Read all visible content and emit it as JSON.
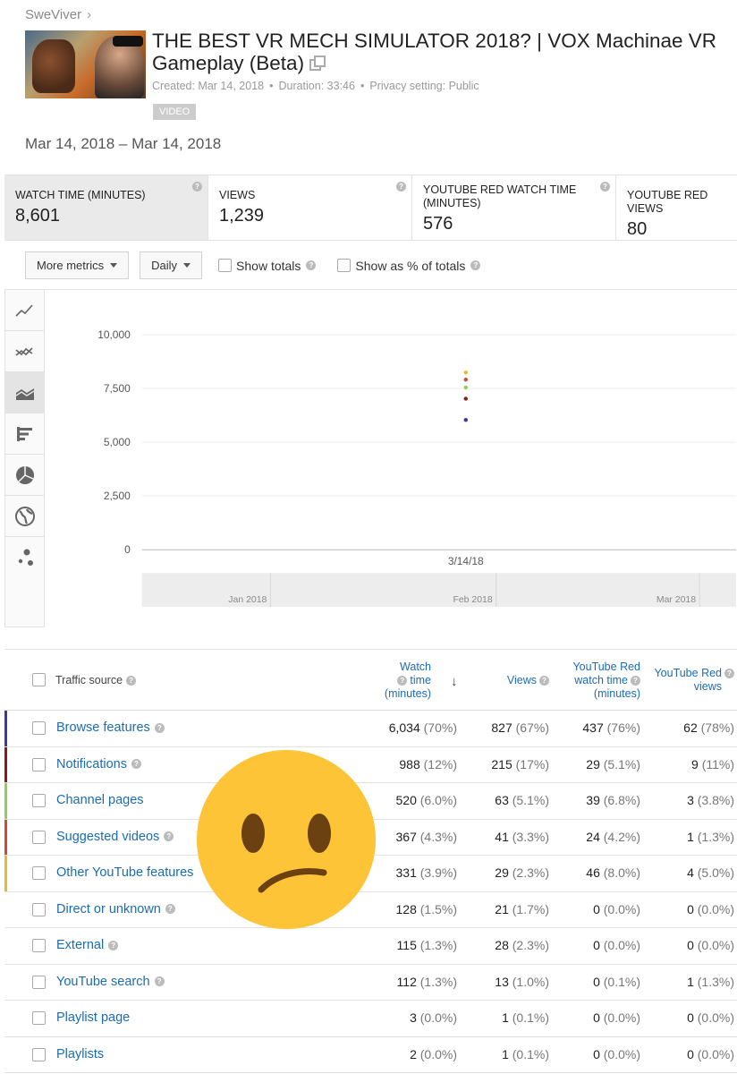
{
  "channel": "SweViver",
  "video": {
    "title": "THE BEST VR MECH SIMULATOR 2018? | VOX Machinae VR Gameplay (Beta)",
    "created": "Created: Mar 14, 2018",
    "duration": "Duration: 33:46",
    "privacy": "Privacy setting: Public",
    "badge": "VIDEO"
  },
  "date_range": "Mar 14, 2018 – Mar 14, 2018",
  "metrics": [
    {
      "label": "WATCH TIME (MINUTES)",
      "value": "8,601"
    },
    {
      "label": "VIEWS",
      "value": "1,239"
    },
    {
      "label": "YOUTUBE RED WATCH TIME (MINUTES)",
      "value": "576"
    },
    {
      "label": "YOUTUBE RED VIEWS",
      "value": "80"
    }
  ],
  "controls": {
    "more_metrics": "More metrics",
    "daily": "Daily",
    "show_totals": "Show totals",
    "show_pct": "Show as % of totals"
  },
  "chart_data": {
    "type": "scatter",
    "y_ticks": [
      "10,000",
      "7,500",
      "5,000",
      "2,500",
      "0"
    ],
    "ylim": [
      0,
      10000
    ],
    "x_label": "3/14/18",
    "timeline_labels": [
      "Jan 2018",
      "Feb 2018",
      "Mar 2018"
    ],
    "grid": true,
    "series": [
      {
        "color": "#3b3b9c",
        "value": 6034
      },
      {
        "color": "#8b1a1a",
        "value": 7022
      },
      {
        "color": "#8fd14f",
        "value": 7542
      },
      {
        "color": "#d0473c",
        "value": 7909
      },
      {
        "color": "#e8b92a",
        "value": 8240
      }
    ]
  },
  "table": {
    "headers": {
      "source": "Traffic source",
      "watch_time": [
        "Watch",
        "time",
        "(minutes)"
      ],
      "views": "Views",
      "red_watch": [
        "YouTube Red",
        "watch time",
        "(minutes)"
      ],
      "red_views": [
        "YouTube Red",
        "views"
      ]
    },
    "rows": [
      {
        "source": "Browse features",
        "help": true,
        "color": "#3b3b9c",
        "wt": "6,034",
        "wtp": "(70%)",
        "v": "827",
        "vp": "(67%)",
        "rwt": "437",
        "rwtp": "(76%)",
        "rv": "62",
        "rvp": "(78%)"
      },
      {
        "source": "Notifications",
        "help": true,
        "color": "#8b1a1a",
        "wt": "988",
        "wtp": "(12%)",
        "v": "215",
        "vp": "(17%)",
        "rwt": "29",
        "rwtp": "(5.1%)",
        "rv": "9",
        "rvp": "(11%)"
      },
      {
        "source": "Channel pages",
        "help": false,
        "color": "#8fd14f",
        "wt": "520",
        "wtp": "(6.0%)",
        "v": "63",
        "vp": "(5.1%)",
        "rwt": "39",
        "rwtp": "(6.8%)",
        "rv": "3",
        "rvp": "(3.8%)"
      },
      {
        "source": "Suggested videos",
        "help": true,
        "color": "#d0473c",
        "wt": "367",
        "wtp": "(4.3%)",
        "v": "41",
        "vp": "(3.3%)",
        "rwt": "24",
        "rwtp": "(4.2%)",
        "rv": "1",
        "rvp": "(1.3%)"
      },
      {
        "source": "Other YouTube features",
        "help": false,
        "color": "#e8b92a",
        "wt": "331",
        "wtp": "(3.9%)",
        "v": "29",
        "vp": "(2.3%)",
        "rwt": "46",
        "rwtp": "(8.0%)",
        "rv": "4",
        "rvp": "(5.0%)"
      },
      {
        "source": "Direct or unknown",
        "help": true,
        "color": "",
        "wt": "128",
        "wtp": "(1.5%)",
        "v": "21",
        "vp": "(1.7%)",
        "rwt": "0",
        "rwtp": "(0.0%)",
        "rv": "0",
        "rvp": "(0.0%)"
      },
      {
        "source": "External",
        "help": true,
        "color": "",
        "wt": "115",
        "wtp": "(1.3%)",
        "v": "28",
        "vp": "(2.3%)",
        "rwt": "0",
        "rwtp": "(0.0%)",
        "rv": "0",
        "rvp": "(0.0%)"
      },
      {
        "source": "YouTube search",
        "help": true,
        "color": "",
        "wt": "112",
        "wtp": "(1.3%)",
        "v": "13",
        "vp": "(1.0%)",
        "rwt": "0",
        "rwtp": "(0.1%)",
        "rv": "1",
        "rvp": "(1.3%)"
      },
      {
        "source": "Playlist page",
        "help": false,
        "color": "",
        "wt": "3",
        "wtp": "(0.0%)",
        "v": "1",
        "vp": "(0.1%)",
        "rwt": "0",
        "rwtp": "(0.0%)",
        "rv": "0",
        "rvp": "(0.0%)"
      },
      {
        "source": "Playlists",
        "help": false,
        "color": "",
        "wt": "2",
        "wtp": "(0.0%)",
        "v": "1",
        "vp": "(0.1%)",
        "rwt": "0",
        "rwtp": "(0.0%)",
        "rv": "0",
        "rvp": "(0.0%)"
      }
    ]
  },
  "overlay": {
    "emoji": "confused-face-emoji",
    "emoji_color": "#fdc437"
  }
}
